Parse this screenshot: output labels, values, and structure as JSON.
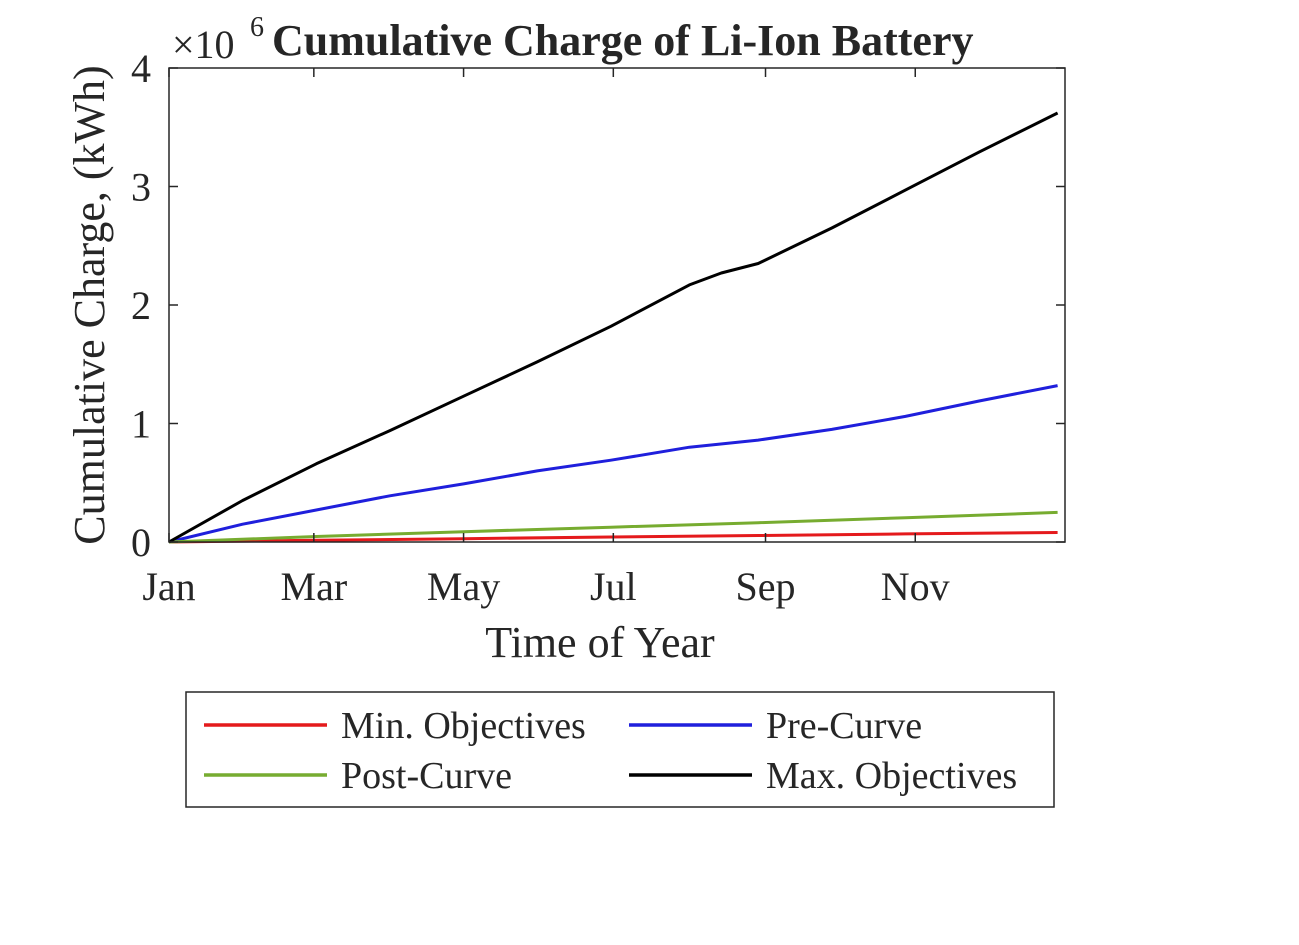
{
  "chart_data": {
    "type": "line",
    "title": "Cumulative Charge of Li-Ion Battery",
    "xlabel": "Time of Year",
    "ylabel": "Cumulative Charge, (kWh)",
    "y_exponent_base": "×10",
    "y_exponent_power": "6",
    "xlim": [
      0,
      365
    ],
    "ylim": [
      0,
      4
    ],
    "x_ticks": [
      0,
      59,
      120,
      181,
      243,
      304
    ],
    "x_tick_labels": [
      "Jan",
      "Mar",
      "May",
      "Jul",
      "Sep",
      "Nov"
    ],
    "y_ticks": [
      0,
      1,
      2,
      3,
      4
    ],
    "y_tick_labels": [
      "0",
      "1",
      "2",
      "3",
      "4"
    ],
    "grid": false,
    "legend_position": "below",
    "series": [
      {
        "name": "Min. Objectives",
        "color": "#e41a1c",
        "x": [
          0,
          60,
          120,
          180,
          240,
          300,
          362
        ],
        "y": [
          0,
          0.014,
          0.028,
          0.042,
          0.055,
          0.068,
          0.08
        ]
      },
      {
        "name": "Pre-Curve",
        "color": "#1f1fdc",
        "x": [
          0,
          30,
          60,
          90,
          120,
          150,
          180,
          212,
          240,
          270,
          300,
          330,
          362
        ],
        "y": [
          0,
          0.15,
          0.27,
          0.39,
          0.49,
          0.6,
          0.69,
          0.8,
          0.86,
          0.95,
          1.06,
          1.19,
          1.32
        ]
      },
      {
        "name": "Post-Curve",
        "color": "#77ac30",
        "x": [
          0,
          60,
          120,
          180,
          240,
          300,
          362
        ],
        "y": [
          0,
          0.046,
          0.087,
          0.125,
          0.163,
          0.205,
          0.25
        ]
      },
      {
        "name": "Max. Objectives",
        "color": "#000000",
        "x": [
          0,
          30,
          60,
          90,
          120,
          150,
          180,
          212,
          225,
          240,
          270,
          300,
          330,
          362
        ],
        "y": [
          0,
          0.35,
          0.66,
          0.94,
          1.23,
          1.52,
          1.82,
          2.17,
          2.27,
          2.35,
          2.65,
          2.97,
          3.29,
          3.62
        ]
      }
    ]
  }
}
